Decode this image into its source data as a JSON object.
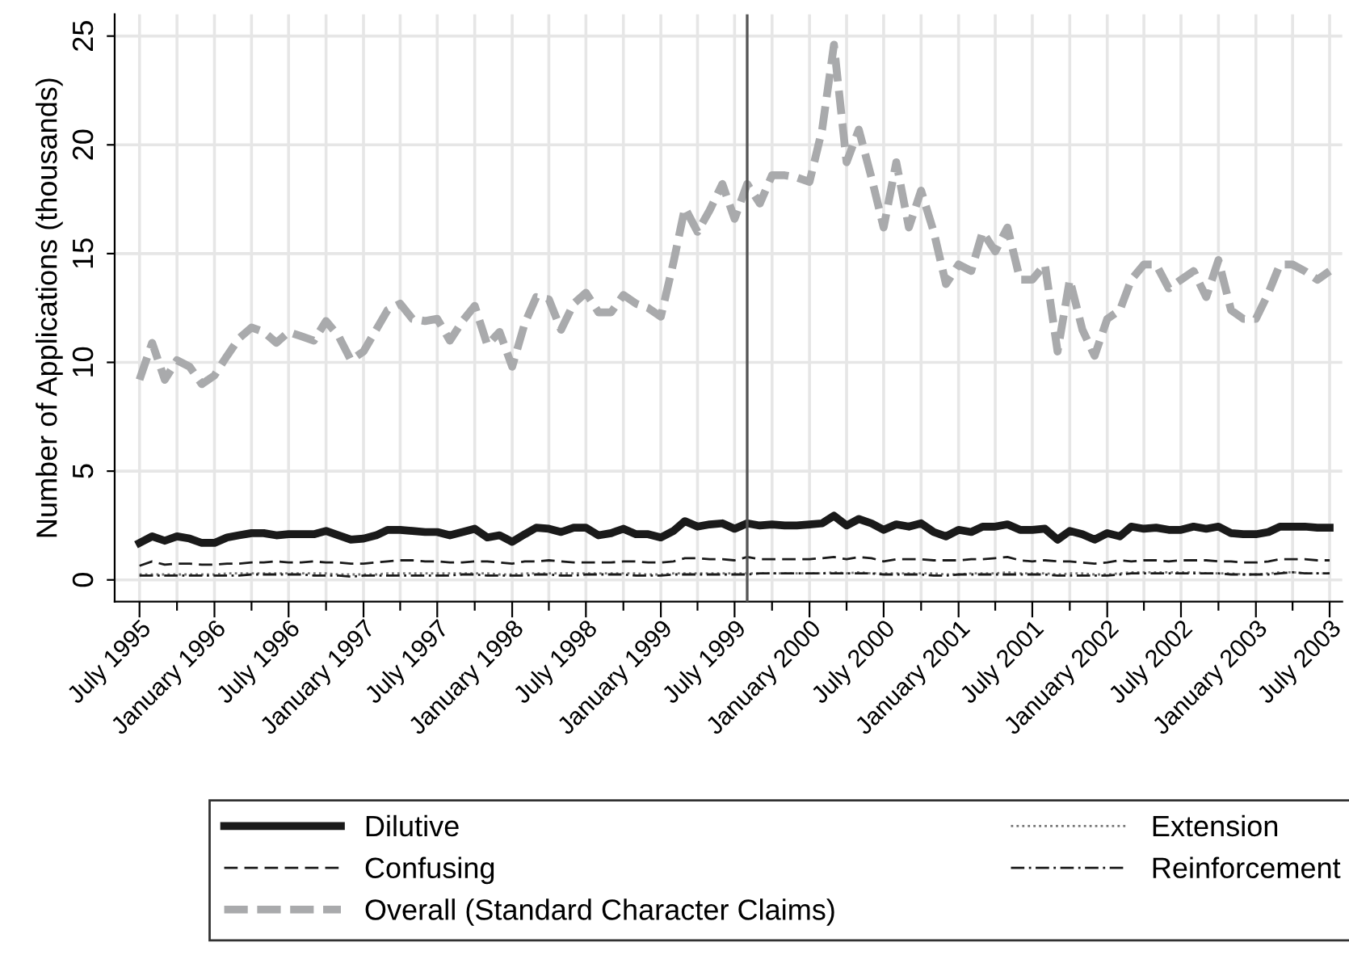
{
  "chart_data": {
    "type": "line",
    "ylabel": "Number of Applications (thousands)",
    "x": [
      "1995-07",
      "1995-08",
      "1995-09",
      "1995-10",
      "1995-11",
      "1995-12",
      "1996-01",
      "1996-02",
      "1996-03",
      "1996-04",
      "1996-05",
      "1996-06",
      "1996-07",
      "1996-08",
      "1996-09",
      "1996-10",
      "1996-11",
      "1996-12",
      "1997-01",
      "1997-02",
      "1997-03",
      "1997-04",
      "1997-05",
      "1997-06",
      "1997-07",
      "1997-08",
      "1997-09",
      "1997-10",
      "1997-11",
      "1997-12",
      "1998-01",
      "1998-02",
      "1998-03",
      "1998-04",
      "1998-05",
      "1998-06",
      "1998-07",
      "1998-08",
      "1998-09",
      "1998-10",
      "1998-11",
      "1998-12",
      "1999-01",
      "1999-02",
      "1999-03",
      "1999-04",
      "1999-05",
      "1999-06",
      "1999-07",
      "1999-08",
      "1999-09",
      "1999-10",
      "1999-11",
      "1999-12",
      "2000-01",
      "2000-02",
      "2000-03",
      "2000-04",
      "2000-05",
      "2000-06",
      "2000-07",
      "2000-08",
      "2000-09",
      "2000-10",
      "2000-11",
      "2000-12",
      "2001-01",
      "2001-02",
      "2001-03",
      "2001-04",
      "2001-05",
      "2001-06",
      "2001-07",
      "2001-08",
      "2001-09",
      "2001-10",
      "2001-11",
      "2001-12",
      "2002-01",
      "2002-02",
      "2002-03",
      "2002-04",
      "2002-05",
      "2002-06",
      "2002-07",
      "2002-08",
      "2002-09",
      "2002-10",
      "2002-11",
      "2002-12",
      "2003-01",
      "2003-02",
      "2003-03",
      "2003-04",
      "2003-05",
      "2003-06",
      "2003-07"
    ],
    "ylim": [
      -1,
      26
    ],
    "yticks": [
      0,
      5,
      10,
      15,
      20,
      25
    ],
    "xlim": [
      "1995-05",
      "2003-08"
    ],
    "xticks": [
      {
        "value": "1995-07",
        "label": "July 1995"
      },
      {
        "value": "1995-10",
        "label": null
      },
      {
        "value": "1996-01",
        "label": "January 1996"
      },
      {
        "value": "1996-04",
        "label": null
      },
      {
        "value": "1996-07",
        "label": "July 1996"
      },
      {
        "value": "1996-10",
        "label": null
      },
      {
        "value": "1997-01",
        "label": "January 1997"
      },
      {
        "value": "1997-04",
        "label": null
      },
      {
        "value": "1997-07",
        "label": "July 1997"
      },
      {
        "value": "1997-10",
        "label": null
      },
      {
        "value": "1998-01",
        "label": "January 1998"
      },
      {
        "value": "1998-04",
        "label": null
      },
      {
        "value": "1998-07",
        "label": "July 1998"
      },
      {
        "value": "1998-10",
        "label": null
      },
      {
        "value": "1999-01",
        "label": "January 1999"
      },
      {
        "value": "1999-04",
        "label": null
      },
      {
        "value": "1999-07",
        "label": "July 1999"
      },
      {
        "value": "1999-10",
        "label": null
      },
      {
        "value": "2000-01",
        "label": "January 2000"
      },
      {
        "value": "2000-04",
        "label": null
      },
      {
        "value": "2000-07",
        "label": "July 2000"
      },
      {
        "value": "2000-10",
        "label": null
      },
      {
        "value": "2001-01",
        "label": "January 2001"
      },
      {
        "value": "2001-04",
        "label": null
      },
      {
        "value": "2001-07",
        "label": "July 2001"
      },
      {
        "value": "2001-10",
        "label": null
      },
      {
        "value": "2002-01",
        "label": "January 2002"
      },
      {
        "value": "2002-04",
        "label": null
      },
      {
        "value": "2002-07",
        "label": "July 2002"
      },
      {
        "value": "2002-10",
        "label": null
      },
      {
        "value": "2003-01",
        "label": "January 2003"
      },
      {
        "value": "2003-04",
        "label": null
      },
      {
        "value": "2003-07",
        "label": "July 2003"
      }
    ],
    "grid": true,
    "legend": "bottom",
    "marker": "none",
    "ref_lines": [
      {
        "axis": "x",
        "value": "1999-08",
        "label": null,
        "color": "#555555"
      }
    ],
    "series": [
      {
        "name": "Dilutive",
        "color": "#1a1a1a",
        "line_style": "solid",
        "values": [
          1.7,
          2.0,
          1.8,
          2.0,
          1.9,
          1.7,
          1.7,
          1.95,
          2.05,
          2.15,
          2.15,
          2.05,
          2.1,
          2.1,
          2.1,
          2.25,
          2.05,
          1.85,
          1.9,
          2.05,
          2.3,
          2.3,
          2.25,
          2.2,
          2.2,
          2.05,
          2.2,
          2.35,
          1.95,
          2.05,
          1.75,
          2.1,
          2.4,
          2.35,
          2.2,
          2.4,
          2.4,
          2.05,
          2.15,
          2.35,
          2.1,
          2.1,
          1.95,
          2.25,
          2.7,
          2.45,
          2.55,
          2.6,
          2.35,
          2.6,
          2.5,
          2.55,
          2.5,
          2.5,
          2.55,
          2.6,
          2.95,
          2.5,
          2.8,
          2.6,
          2.3,
          2.55,
          2.45,
          2.6,
          2.2,
          2.0,
          2.3,
          2.2,
          2.45,
          2.45,
          2.55,
          2.3,
          2.3,
          2.35,
          1.85,
          2.25,
          2.1,
          1.85,
          2.15,
          2.0,
          2.45,
          2.35,
          2.4,
          2.3,
          2.3,
          2.45,
          2.35,
          2.45,
          2.15,
          2.1,
          2.1,
          2.2,
          2.45,
          2.45,
          2.45,
          2.4,
          2.4
        ]
      },
      {
        "name": "Confusing",
        "color": "#1a1a1a",
        "line_style": "dashed",
        "values": [
          0.65,
          0.85,
          0.7,
          0.75,
          0.75,
          0.7,
          0.7,
          0.75,
          0.75,
          0.8,
          0.8,
          0.85,
          0.8,
          0.8,
          0.85,
          0.8,
          0.8,
          0.75,
          0.75,
          0.8,
          0.85,
          0.9,
          0.9,
          0.85,
          0.85,
          0.8,
          0.8,
          0.85,
          0.85,
          0.8,
          0.75,
          0.85,
          0.85,
          0.9,
          0.85,
          0.8,
          0.8,
          0.8,
          0.8,
          0.85,
          0.85,
          0.8,
          0.8,
          0.85,
          1.0,
          1.0,
          0.95,
          0.95,
          0.9,
          1.05,
          0.95,
          0.95,
          0.95,
          0.95,
          0.95,
          1.0,
          1.05,
          0.95,
          1.05,
          1.0,
          0.85,
          0.95,
          0.95,
          0.95,
          0.9,
          0.9,
          0.9,
          0.95,
          0.95,
          1.0,
          1.05,
          0.9,
          0.85,
          0.9,
          0.85,
          0.85,
          0.8,
          0.75,
          0.8,
          0.9,
          0.85,
          0.9,
          0.9,
          0.85,
          0.9,
          0.9,
          0.9,
          0.85,
          0.85,
          0.8,
          0.8,
          0.85,
          0.95,
          0.95,
          0.95,
          0.9,
          0.9
        ]
      },
      {
        "name": "Overall (Standard Character Claims)",
        "color": "#a9aaac",
        "line_style": "dashed",
        "values": [
          9.2,
          10.9,
          9.2,
          10.1,
          9.8,
          9.0,
          9.4,
          10.3,
          11.1,
          11.6,
          11.4,
          10.9,
          11.4,
          11.2,
          11.0,
          11.9,
          11.2,
          10.1,
          10.5,
          11.5,
          12.4,
          12.7,
          12.0,
          11.9,
          12.0,
          11.0,
          11.9,
          12.6,
          10.8,
          11.4,
          9.8,
          11.8,
          13.0,
          12.9,
          11.5,
          12.7,
          13.2,
          12.3,
          12.3,
          13.1,
          12.7,
          12.5,
          12.1,
          14.6,
          17.1,
          16.0,
          17.0,
          18.2,
          16.6,
          18.2,
          17.3,
          18.6,
          18.6,
          18.5,
          18.3,
          20.7,
          24.6,
          19.2,
          20.7,
          18.5,
          16.2,
          19.2,
          16.2,
          17.9,
          16.0,
          13.6,
          14.5,
          14.2,
          16.0,
          15.1,
          16.2,
          13.8,
          13.8,
          14.5,
          10.5,
          13.8,
          11.5,
          10.3,
          12.0,
          12.4,
          13.8,
          14.5,
          14.5,
          13.4,
          13.8,
          14.2,
          13.0,
          14.7,
          12.4,
          12.0,
          12.0,
          13.2,
          14.5,
          14.5,
          14.2,
          13.8,
          14.2
        ]
      },
      {
        "name": "Extension",
        "color": "#777777",
        "line_style": "dotted",
        "values": [
          0.25,
          0.25,
          0.25,
          0.25,
          0.25,
          0.25,
          0.25,
          0.3,
          0.3,
          0.3,
          0.3,
          0.3,
          0.3,
          0.3,
          0.3,
          0.3,
          0.25,
          0.25,
          0.25,
          0.25,
          0.3,
          0.3,
          0.3,
          0.3,
          0.3,
          0.3,
          0.3,
          0.3,
          0.3,
          0.25,
          0.25,
          0.3,
          0.3,
          0.3,
          0.3,
          0.3,
          0.3,
          0.3,
          0.3,
          0.3,
          0.3,
          0.25,
          0.25,
          0.3,
          0.3,
          0.3,
          0.3,
          0.3,
          0.3,
          0.3,
          0.3,
          0.3,
          0.3,
          0.3,
          0.3,
          0.3,
          0.35,
          0.3,
          0.35,
          0.3,
          0.3,
          0.3,
          0.3,
          0.3,
          0.3,
          0.25,
          0.25,
          0.3,
          0.3,
          0.3,
          0.35,
          0.3,
          0.3,
          0.3,
          0.25,
          0.3,
          0.3,
          0.25,
          0.25,
          0.3,
          0.35,
          0.35,
          0.35,
          0.35,
          0.35,
          0.35,
          0.3,
          0.3,
          0.3,
          0.25,
          0.25,
          0.3,
          0.35,
          0.35,
          0.3,
          0.3,
          0.3
        ]
      },
      {
        "name": "Reinforcement",
        "color": "#1a1a1a",
        "line_style": "dashdot",
        "values": [
          0.2,
          0.2,
          0.2,
          0.2,
          0.2,
          0.2,
          0.2,
          0.2,
          0.2,
          0.25,
          0.25,
          0.25,
          0.25,
          0.25,
          0.2,
          0.2,
          0.2,
          0.15,
          0.2,
          0.2,
          0.2,
          0.2,
          0.2,
          0.2,
          0.2,
          0.2,
          0.25,
          0.25,
          0.2,
          0.2,
          0.2,
          0.2,
          0.25,
          0.25,
          0.2,
          0.2,
          0.25,
          0.25,
          0.25,
          0.25,
          0.2,
          0.2,
          0.2,
          0.25,
          0.25,
          0.25,
          0.25,
          0.25,
          0.25,
          0.25,
          0.3,
          0.3,
          0.3,
          0.3,
          0.3,
          0.3,
          0.3,
          0.3,
          0.3,
          0.3,
          0.25,
          0.25,
          0.25,
          0.25,
          0.2,
          0.2,
          0.25,
          0.25,
          0.25,
          0.25,
          0.25,
          0.25,
          0.25,
          0.25,
          0.2,
          0.2,
          0.2,
          0.2,
          0.2,
          0.25,
          0.3,
          0.3,
          0.3,
          0.3,
          0.3,
          0.3,
          0.3,
          0.3,
          0.25,
          0.25,
          0.25,
          0.25,
          0.3,
          0.35,
          0.3,
          0.3,
          0.3
        ]
      }
    ]
  }
}
